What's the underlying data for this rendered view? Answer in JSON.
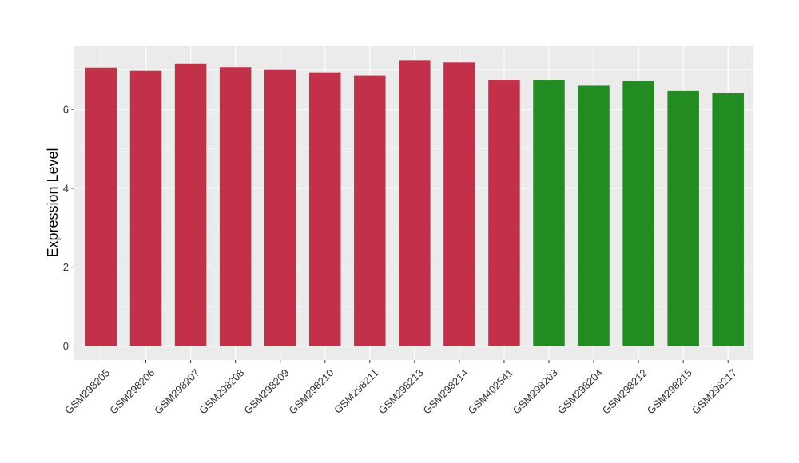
{
  "chart_data": {
    "type": "bar",
    "title": "",
    "xlabel": "",
    "ylabel": "Expression Level",
    "ylim": [
      0,
      7.6
    ],
    "yticks": [
      0,
      2,
      4,
      6
    ],
    "grid": true,
    "legend": "none",
    "categories": [
      "GSM298205",
      "GSM298206",
      "GSM298207",
      "GSM298208",
      "GSM298209",
      "GSM298210",
      "GSM298211",
      "GSM298213",
      "GSM298214",
      "GSM402541",
      "GSM298203",
      "GSM298204",
      "GSM298212",
      "GSM298215",
      "GSM298217"
    ],
    "values": [
      7.06,
      6.98,
      7.16,
      7.07,
      7.0,
      6.94,
      6.86,
      7.25,
      7.19,
      6.75,
      6.75,
      6.6,
      6.71,
      6.47,
      6.41
    ],
    "groups": [
      "a",
      "a",
      "a",
      "a",
      "a",
      "a",
      "a",
      "a",
      "a",
      "a",
      "b",
      "b",
      "b",
      "b",
      "b"
    ],
    "colors": {
      "a": "#C3304A",
      "b": "#228B22"
    },
    "panel_background": "#EBEBEB",
    "grid_color": "#FFFFFF"
  }
}
